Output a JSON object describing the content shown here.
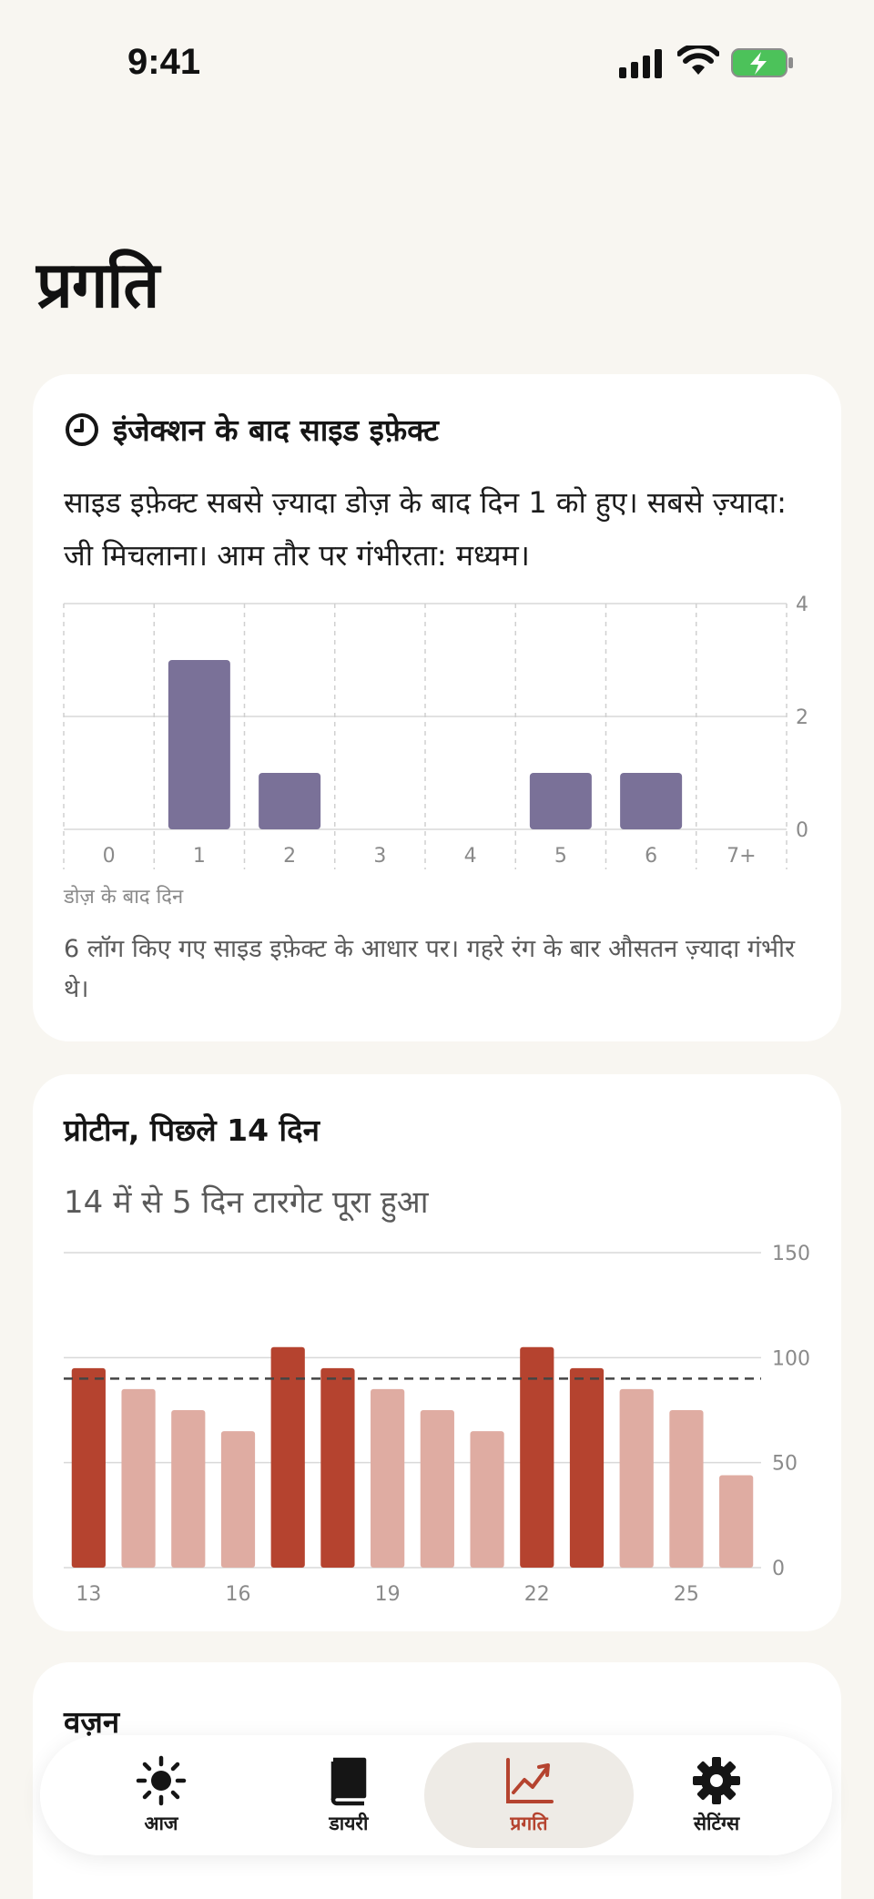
{
  "status_bar": {
    "time": "9:41"
  },
  "page_title": "प्रगति",
  "side_effects_card": {
    "title": "इंजेक्शन के बाद साइड इफ़ेक्ट",
    "description": "साइड इफ़ेक्ट सबसे ज़्यादा डोज़ के बाद दिन 1 को हुए। सबसे ज़्यादा: जी मिचलाना। आम तौर पर गंभीरता: मध्यम।",
    "x_caption": "डोज़ के बाद दिन",
    "note": "6 लॉग किए गए साइड इफ़ेक्ट के आधार पर। गहरे रंग के बार औसतन ज़्यादा गंभीर थे।",
    "chart_data": {
      "type": "bar",
      "categories": [
        "0",
        "1",
        "2",
        "3",
        "4",
        "5",
        "6",
        "7+"
      ],
      "values": [
        0,
        3,
        1,
        0,
        0,
        1,
        1,
        0
      ],
      "xlabel": "डोज़ के बाद दिन",
      "ylim": [
        0,
        4
      ],
      "y_ticks": [
        "0",
        "2",
        "4"
      ],
      "bar_color": "#7a7198",
      "grid": true
    }
  },
  "protein_card": {
    "title": "प्रोटीन, पिछले 14 दिन",
    "subtitle": "14 में से 5 दिन टारगेट पूरा हुआ",
    "chart_data": {
      "type": "bar",
      "x": [
        13,
        14,
        15,
        16,
        17,
        18,
        19,
        20,
        21,
        22,
        23,
        24,
        25,
        26
      ],
      "x_tick_labels": [
        "13",
        "16",
        "19",
        "22",
        "25"
      ],
      "values": [
        95,
        85,
        75,
        65,
        105,
        95,
        85,
        75,
        65,
        105,
        95,
        85,
        75,
        44
      ],
      "target": 90,
      "ylim": [
        0,
        150
      ],
      "y_ticks": [
        "0",
        "50",
        "100",
        "150"
      ],
      "met_color": "#b5432f",
      "unmet_color": "#dfaca2",
      "grid": true
    }
  },
  "weight_card": {
    "title": "वज़न"
  },
  "nav": {
    "items": [
      {
        "label": "आज",
        "icon": "sun-icon"
      },
      {
        "label": "डायरी",
        "icon": "book-icon"
      },
      {
        "label": "प्रगति",
        "icon": "chart-line-icon"
      },
      {
        "label": "सेटिंग्स",
        "icon": "gear-icon"
      }
    ],
    "active_color": "#b5432f"
  }
}
